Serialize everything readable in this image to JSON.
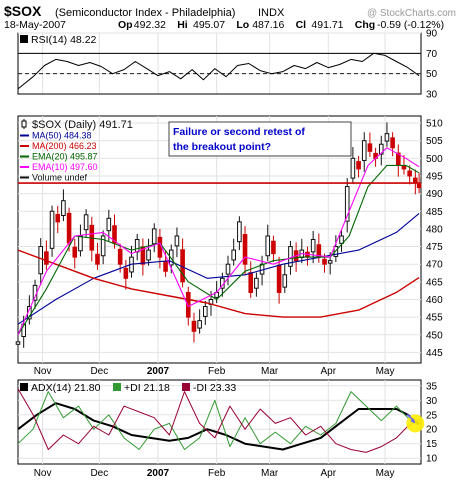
{
  "header": {
    "symbol": "$SOX",
    "name": "(Semiconductor Index - Philadelphia)",
    "exchange": "INDX",
    "watermark": "@ StockCharts.com",
    "date": "18-May-2007",
    "stats": [
      {
        "label": "Op",
        "value": "492.32"
      },
      {
        "label": "Hi",
        "value": "495.07"
      },
      {
        "label": "Lo",
        "value": "487.16"
      },
      {
        "label": "Cl",
        "value": "491.71"
      },
      {
        "label": "Chg",
        "value": "-0.59 (-0.12%)"
      }
    ],
    "chg_arrow": "down-arrow-icon"
  },
  "colors": {
    "up": "#111111",
    "down": "#cc0000",
    "ma50": "#000099",
    "ma200": "#cc0000",
    "ema20": "#006600",
    "ema10": "#ff00ff",
    "resistance": "#cc0000",
    "callout_text": "#0000cc",
    "adx": "#000000",
    "plus_di": "#339933",
    "minus_di": "#990033",
    "highlight": "#ffee00",
    "arrow": "#6666ff"
  },
  "x_axis": {
    "labels": [
      {
        "text": "Nov",
        "bold": false,
        "day": 13
      },
      {
        "text": "Dec",
        "bold": false,
        "day": 43
      },
      {
        "text": "2007",
        "bold": true,
        "day": 74
      },
      {
        "text": "Feb",
        "bold": false,
        "day": 105
      },
      {
        "text": "Mar",
        "bold": false,
        "day": 133
      },
      {
        "text": "Apr",
        "bold": false,
        "day": 164
      },
      {
        "text": "May",
        "bold": false,
        "day": 194
      }
    ],
    "day_range": [
      0,
      213
    ]
  },
  "chart_data": [
    {
      "type": "line",
      "title": "RSI(14) 48.22",
      "ylim": [
        30,
        90
      ],
      "yticks": [
        30,
        50,
        70,
        90
      ],
      "tick_labels": [
        "90",
        "70",
        "50",
        "30"
      ],
      "reference_lines": [
        70,
        30
      ],
      "center_line": 50,
      "series": [
        {
          "name": "RSI(14) 48.22",
          "x": [
            0,
            8,
            14,
            20,
            26,
            32,
            38,
            44,
            50,
            56,
            62,
            68,
            74,
            80,
            86,
            92,
            98,
            104,
            110,
            116,
            122,
            128,
            134,
            140,
            146,
            152,
            158,
            164,
            170,
            176,
            182,
            188,
            194,
            200,
            206,
            212
          ],
          "values": [
            35,
            47,
            58,
            64,
            62,
            58,
            61,
            57,
            50,
            54,
            62,
            55,
            48,
            52,
            45,
            54,
            44,
            55,
            47,
            58,
            60,
            53,
            50,
            52,
            58,
            55,
            61,
            56,
            59,
            64,
            62,
            70,
            68,
            62,
            56,
            48
          ]
        }
      ]
    },
    {
      "type": "candlestick",
      "title": "$SOX (Daily) 491.71",
      "ylim": [
        442,
        512
      ],
      "yticks": [
        445,
        450,
        455,
        460,
        465,
        470,
        475,
        480,
        485,
        490,
        495,
        500,
        505,
        510
      ],
      "tick_labels": [
        "510",
        "505",
        "500",
        "495",
        "490",
        "485",
        "480",
        "475",
        "470",
        "465",
        "460",
        "455",
        "450",
        "445"
      ],
      "legend": [
        {
          "label": "$SOX (Daily) 491.71",
          "color_key": "up",
          "swatch": "candle"
        },
        {
          "label": "MA(50) 484.38",
          "color_key": "ma50",
          "swatch": "line"
        },
        {
          "label": "MA(200) 466.23",
          "color_key": "ma200",
          "swatch": "line"
        },
        {
          "label": "EMA(20) 495.87",
          "color_key": "ema20",
          "swatch": "line"
        },
        {
          "label": "EMA(10) 497.60",
          "color_key": "ema10",
          "swatch": "line"
        },
        {
          "label": "Volume undef",
          "color_key": "up",
          "swatch": "line"
        }
      ],
      "annotation": {
        "text_line1": "Failure or second retest of",
        "text_line2": "the breakout point?"
      },
      "resistance_level": 493,
      "close_series": {
        "name": "$SOX (Daily) 491.71",
        "x": [
          0,
          3,
          6,
          9,
          12,
          15,
          18,
          21,
          24,
          27,
          30,
          33,
          36,
          39,
          42,
          45,
          48,
          51,
          54,
          57,
          60,
          63,
          66,
          69,
          72,
          75,
          78,
          81,
          84,
          87,
          90,
          93,
          96,
          99,
          102,
          105,
          108,
          111,
          114,
          117,
          120,
          123,
          126,
          129,
          132,
          135,
          138,
          141,
          144,
          147,
          150,
          153,
          156,
          159,
          162,
          165,
          168,
          171,
          174,
          177,
          180,
          183,
          186,
          189,
          192,
          195,
          198,
          201,
          204,
          207,
          210,
          212
        ],
        "values": [
          448,
          453,
          458,
          464,
          475,
          470,
          485,
          482,
          488,
          476,
          472,
          478,
          484,
          474,
          470,
          478,
          483,
          476,
          470,
          466,
          472,
          477,
          470,
          474,
          480,
          472,
          468,
          474,
          478,
          465,
          455,
          451,
          454,
          458,
          460,
          462,
          466,
          470,
          474,
          482,
          470,
          462,
          466,
          470,
          478,
          473,
          462,
          467,
          475,
          471,
          474,
          472,
          477,
          472,
          470,
          471,
          475,
          478,
          492,
          500,
          497,
          505,
          502,
          500,
          504,
          507,
          503,
          498,
          497,
          495,
          493,
          491.7
        ]
      },
      "series": [
        {
          "name": "MA(50) 484.38",
          "color_key": "ma50",
          "x": [
            0,
            20,
            40,
            60,
            80,
            100,
            120,
            140,
            160,
            180,
            200,
            212
          ],
          "values": [
            453,
            460,
            466,
            470,
            471,
            466,
            467,
            470,
            472,
            474,
            479,
            484.4
          ]
        },
        {
          "name": "MA(200) 466.23",
          "color_key": "ma200",
          "x": [
            0,
            20,
            40,
            60,
            80,
            100,
            120,
            140,
            160,
            180,
            200,
            212
          ],
          "values": [
            474,
            470,
            466,
            463,
            461,
            459,
            456,
            455,
            455,
            457,
            462,
            466.2
          ]
        },
        {
          "name": "EMA(20) 495.87",
          "color_key": "ema20",
          "x": [
            0,
            15,
            30,
            45,
            60,
            75,
            90,
            105,
            120,
            135,
            150,
            165,
            175,
            185,
            195,
            205,
            212
          ],
          "values": [
            450,
            463,
            478,
            477,
            474,
            476,
            465,
            460,
            468,
            471,
            472,
            472,
            478,
            492,
            498,
            498,
            495.9
          ]
        },
        {
          "name": "EMA(10) 497.60",
          "color_key": "ema10",
          "x": [
            0,
            15,
            30,
            45,
            60,
            75,
            90,
            105,
            120,
            135,
            150,
            165,
            175,
            185,
            195,
            205,
            212
          ],
          "values": [
            450,
            468,
            478,
            479,
            473,
            476,
            458,
            462,
            472,
            470,
            473,
            472,
            485,
            498,
            503,
            500,
            497.6
          ]
        }
      ]
    },
    {
      "type": "line",
      "title": "ADX(14) 21.80 +DI 21.18 -DI 23.33",
      "ylim": [
        8,
        37
      ],
      "yticks": [
        10,
        15,
        20,
        25,
        30,
        35
      ],
      "tick_labels": [
        "35",
        "30",
        "25",
        "20",
        "15",
        "10"
      ],
      "legend": [
        {
          "label": "ADX(14) 21.80",
          "color_key": "adx"
        },
        {
          "label": "+DI 21.18",
          "color_key": "plus_di"
        },
        {
          "label": "-DI 23.33",
          "color_key": "minus_di"
        }
      ],
      "series": [
        {
          "name": "ADX(14) 21.80",
          "color_key": "adx",
          "x": [
            0,
            10,
            20,
            30,
            40,
            50,
            60,
            70,
            80,
            90,
            100,
            110,
            120,
            130,
            140,
            150,
            160,
            170,
            180,
            190,
            200,
            206,
            212
          ],
          "values": [
            20,
            25,
            29,
            27,
            23,
            21,
            18,
            17,
            16,
            17,
            20,
            18,
            15,
            14,
            13,
            15,
            17,
            22,
            27,
            27,
            27,
            25,
            21.8
          ]
        },
        {
          "name": "+DI 21.18",
          "color_key": "plus_di",
          "x": [
            0,
            8,
            16,
            24,
            32,
            40,
            48,
            56,
            64,
            72,
            80,
            88,
            96,
            104,
            112,
            120,
            128,
            136,
            144,
            152,
            160,
            168,
            176,
            184,
            192,
            200,
            206,
            212
          ],
          "values": [
            15,
            20,
            33,
            24,
            28,
            20,
            25,
            17,
            13,
            20,
            22,
            13,
            17,
            30,
            14,
            24,
            15,
            19,
            15,
            21,
            18,
            22,
            33,
            28,
            23,
            28,
            24,
            21.2
          ]
        },
        {
          "name": "-DI 23.33",
          "color_key": "minus_di",
          "x": [
            0,
            8,
            16,
            24,
            32,
            40,
            48,
            56,
            64,
            72,
            80,
            88,
            96,
            104,
            112,
            120,
            128,
            136,
            144,
            152,
            160,
            168,
            176,
            184,
            192,
            200,
            206,
            212
          ],
          "values": [
            34,
            25,
            13,
            18,
            15,
            21,
            18,
            28,
            26,
            24,
            18,
            33,
            22,
            17,
            28,
            20,
            27,
            22,
            24,
            18,
            21,
            15,
            13,
            12,
            14,
            17,
            21,
            23.3
          ]
        }
      ],
      "highlight_point": {
        "x": 210,
        "y": 22
      }
    }
  ]
}
